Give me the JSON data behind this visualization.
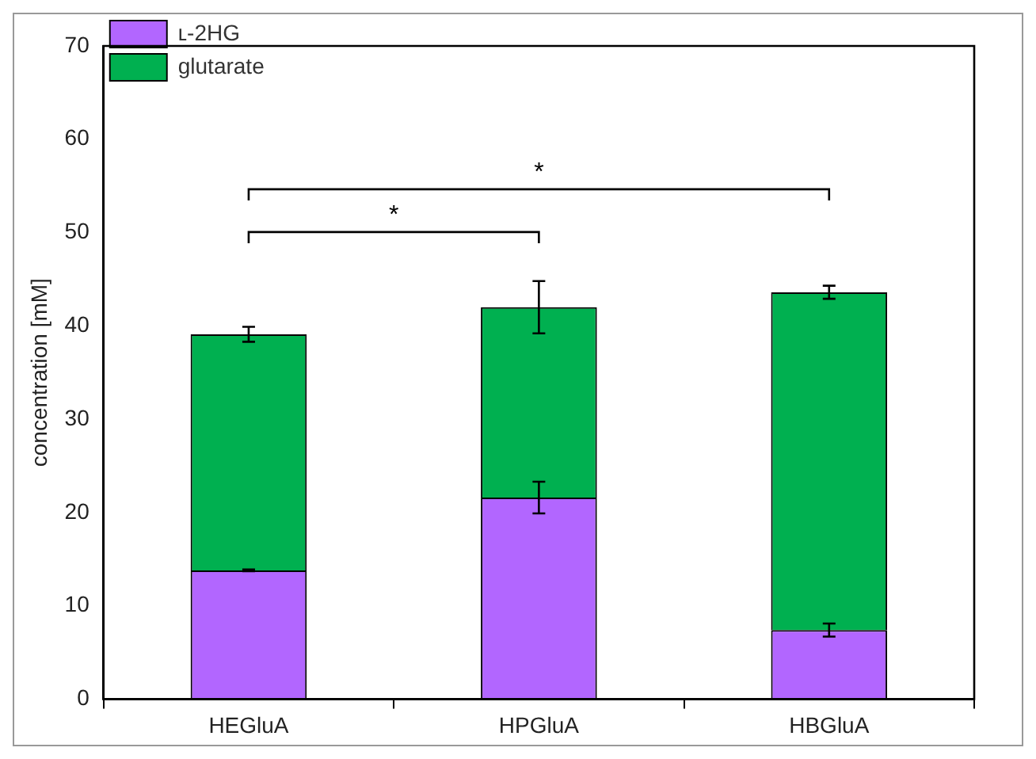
{
  "chart_data": {
    "type": "bar",
    "stacked": true,
    "ylabel": "concentration [mM]",
    "categories": [
      "HEGluA",
      "HPGluA",
      "HBGluA"
    ],
    "series": [
      {
        "name": "ʟ-2HG",
        "color": "#b266ff",
        "values": [
          13.8,
          21.6,
          7.4
        ],
        "errors": [
          0.1,
          1.7,
          0.7
        ]
      },
      {
        "name": "glutarate",
        "color": "#00b050",
        "values": [
          25.3,
          20.4,
          36.2
        ],
        "errors": [
          0.8,
          2.8,
          0.7
        ]
      }
    ],
    "ylim": [
      0,
      70
    ],
    "yticks": [
      0,
      10,
      20,
      30,
      40,
      50,
      60,
      70
    ],
    "legend": "top left",
    "annotations": [
      "*",
      "*"
    ]
  }
}
